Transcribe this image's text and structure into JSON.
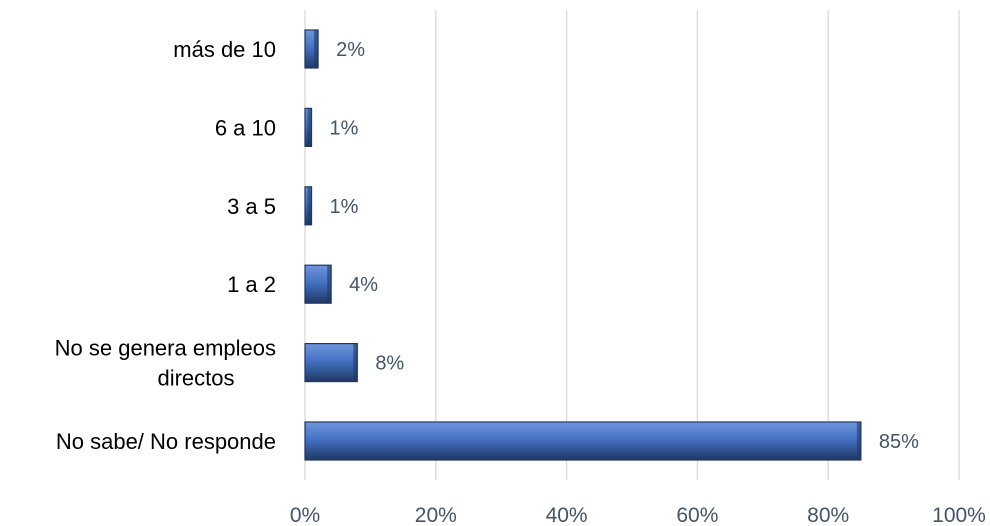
{
  "chart_data": {
    "type": "bar",
    "orientation": "horizontal",
    "categories": [
      "más de 10",
      "6 a 10",
      "3 a 5",
      "1 a 2",
      "No se genera empleos directos",
      "No sabe/ No responde"
    ],
    "category_lines": [
      [
        "más de 10"
      ],
      [
        "6 a 10"
      ],
      [
        "3 a 5"
      ],
      [
        "1 a 2"
      ],
      [
        "No se genera empleos",
        "directos"
      ],
      [
        "No sabe/ No responde"
      ]
    ],
    "values": [
      2,
      1,
      1,
      4,
      8,
      85
    ],
    "value_labels": [
      "2%",
      "1%",
      "1%",
      "4%",
      "8%",
      "85%"
    ],
    "xlim": [
      0,
      100
    ],
    "xticks": [
      0,
      20,
      40,
      60,
      80,
      100
    ],
    "xtick_labels": [
      "0%",
      "20%",
      "40%",
      "60%",
      "80%",
      "100%"
    ],
    "grid": true,
    "legend": "none",
    "colors": {
      "bar": "#4472c4",
      "bar_light": "#6f96dc",
      "bar_dark": "#1f3864",
      "grid": "#d9d9d9",
      "tick_text": "#44546a"
    }
  }
}
